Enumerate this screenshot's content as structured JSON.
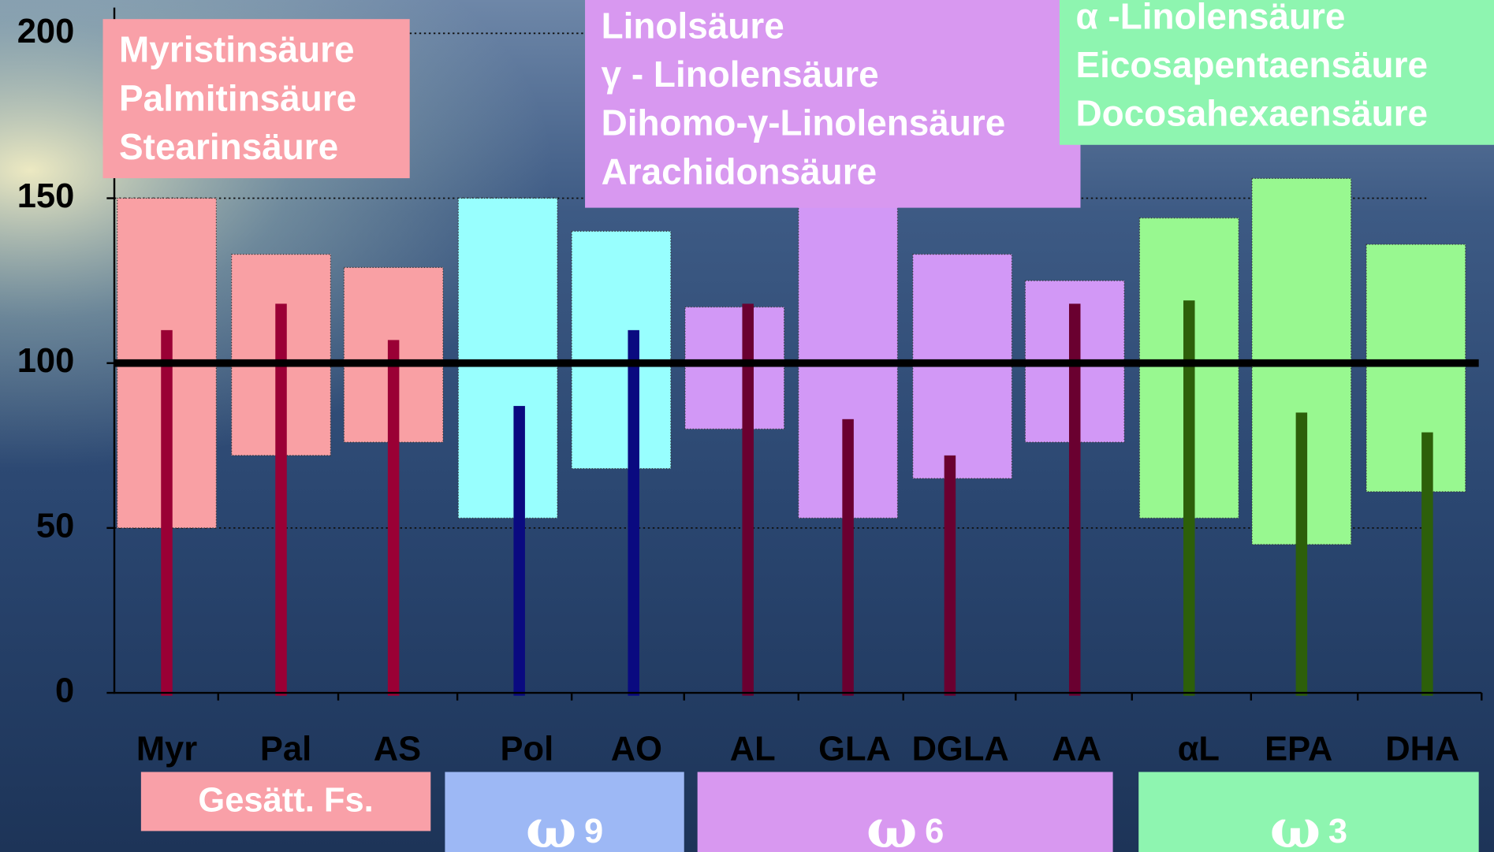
{
  "chart_data": {
    "type": "range_bar",
    "ylim": [
      0,
      200
    ],
    "yticks": [
      0,
      50,
      100,
      150,
      200
    ],
    "grid": true,
    "reference_line": 100,
    "groups": [
      {
        "label": "Gesätt. Fs.",
        "names": [
          "Myristinsäure",
          "Palmitinsäure",
          "Stearinsäure"
        ],
        "categories": [
          "Myr",
          "Pal",
          "AS"
        ],
        "ranges": [
          [
            50,
            150
          ],
          [
            72,
            133
          ],
          [
            76,
            129
          ]
        ],
        "values": [
          110,
          118,
          107
        ],
        "box_color": "#f9a0a4",
        "bar_color": "#9a0035",
        "label_color": "#f9a0a8"
      },
      {
        "symbol": "ω",
        "number": "9",
        "categories": [
          "Pol",
          "AO"
        ],
        "ranges": [
          [
            53,
            150
          ],
          [
            68,
            140
          ]
        ],
        "values": [
          87,
          110
        ],
        "box_color": "#98fffe",
        "bar_color": "#0a0a80",
        "label_color": "#9db8f5"
      },
      {
        "symbol": "ω",
        "number": "6",
        "names": [
          "Linolsäure",
          "γ - Linolensäure",
          "Dihomo-γ-Linolensäure",
          "Arachidonsäure"
        ],
        "categories": [
          "AL",
          "GLA",
          "DGLA",
          "AA"
        ],
        "ranges": [
          [
            80,
            117
          ],
          [
            53,
            155
          ],
          [
            65,
            133
          ],
          [
            76,
            125
          ]
        ],
        "values": [
          118,
          83,
          72,
          118
        ],
        "box_color": "#d298f6",
        "bar_color": "#6a0030",
        "label_color": "#d898f0"
      },
      {
        "symbol": "ω",
        "number": "3",
        "names": [
          "α -Linolensäure",
          "Eicosapentaensäure",
          "Docosahexaensäure"
        ],
        "categories": [
          "αL",
          "EPA",
          "DHA"
        ],
        "ranges": [
          [
            53,
            144
          ],
          [
            45,
            156
          ],
          [
            61,
            136
          ]
        ],
        "values": [
          119,
          85,
          79
        ],
        "box_color": "#98f890",
        "bar_color": "#2d5f0a",
        "label_color": "#8ef5b0"
      }
    ]
  }
}
